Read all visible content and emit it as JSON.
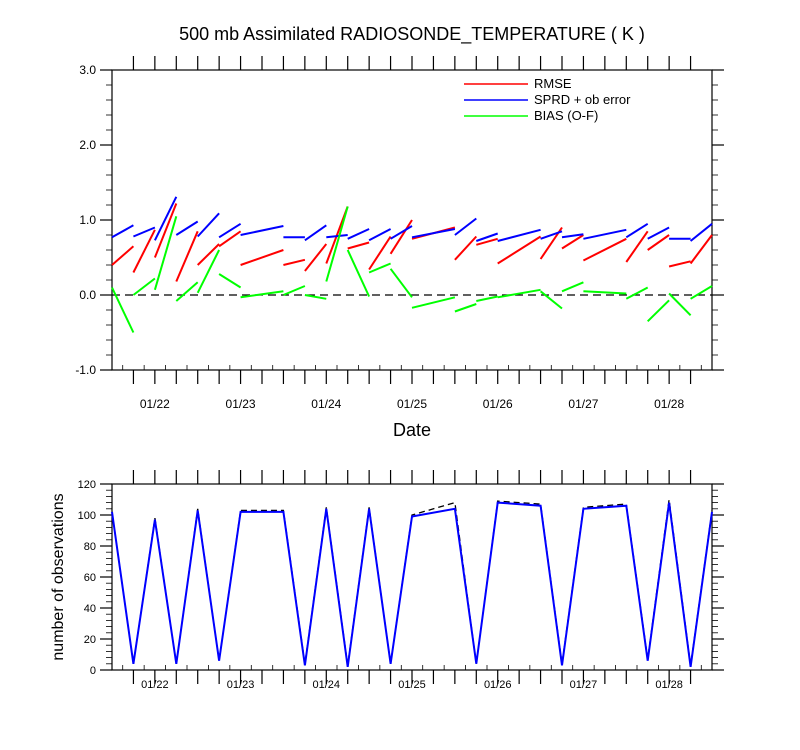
{
  "chart_data": [
    {
      "type": "line",
      "title": "500 mb Assimilated RADIOSONDE_TEMPERATURE ( K )",
      "xlabel": "Date",
      "ylabel": "",
      "ylim": [
        -1.0,
        3.0
      ],
      "yticks": [
        "-1.0",
        "0.0",
        "1.0",
        "2.0",
        "3.0"
      ],
      "ytick_values": [
        -1,
        0,
        1,
        2,
        3
      ],
      "xlim": [
        0,
        28
      ],
      "xticks": [
        {
          "x": 2,
          "label": "01/22"
        },
        {
          "x": 6,
          "label": "01/23"
        },
        {
          "x": 10,
          "label": "01/24"
        },
        {
          "x": 14,
          "label": "01/25"
        },
        {
          "x": 18,
          "label": "01/26"
        },
        {
          "x": 22,
          "label": "01/27"
        },
        {
          "x": 26,
          "label": "01/28"
        }
      ],
      "reference_line": 0,
      "legend": [
        "RMSE",
        "SPRD + ob error",
        "BIAS (O-F)"
      ],
      "series": [
        {
          "name": "RMSE",
          "color": "#ff0000",
          "segments": [
            [
              [
                0,
                0.4
              ],
              [
                1,
                0.65
              ]
            ],
            [
              [
                1,
                0.3
              ],
              [
                2,
                0.87
              ]
            ],
            [
              [
                2,
                0.5
              ],
              [
                3,
                1.22
              ]
            ],
            [
              [
                3,
                0.18
              ],
              [
                4,
                0.85
              ]
            ],
            [
              [
                4,
                0.4
              ],
              [
                5,
                0.68
              ]
            ],
            [
              [
                5,
                0.65
              ],
              [
                6,
                0.85
              ]
            ],
            [
              [
                6,
                0.4
              ],
              [
                8,
                0.6
              ]
            ],
            [
              [
                8,
                0.4
              ],
              [
                9,
                0.47
              ]
            ],
            [
              [
                9,
                0.32
              ],
              [
                10,
                0.68
              ]
            ],
            [
              [
                10,
                0.42
              ],
              [
                11,
                1.18
              ]
            ],
            [
              [
                11,
                0.62
              ],
              [
                12,
                0.7
              ]
            ],
            [
              [
                12,
                0.34
              ],
              [
                13,
                0.78
              ]
            ],
            [
              [
                13,
                0.55
              ],
              [
                14,
                1.0
              ]
            ],
            [
              [
                14,
                0.75
              ],
              [
                16,
                0.9
              ]
            ],
            [
              [
                16,
                0.47
              ],
              [
                17,
                0.78
              ]
            ],
            [
              [
                17,
                0.67
              ],
              [
                18,
                0.75
              ]
            ],
            [
              [
                18,
                0.42
              ],
              [
                20,
                0.78
              ]
            ],
            [
              [
                20,
                0.48
              ],
              [
                21,
                0.9
              ]
            ],
            [
              [
                21,
                0.62
              ],
              [
                22,
                0.8
              ]
            ],
            [
              [
                22,
                0.46
              ],
              [
                24,
                0.75
              ]
            ],
            [
              [
                24,
                0.44
              ],
              [
                25,
                0.85
              ]
            ],
            [
              [
                25,
                0.6
              ],
              [
                26,
                0.8
              ]
            ],
            [
              [
                26,
                0.38
              ],
              [
                27,
                0.45
              ]
            ],
            [
              [
                27,
                0.42
              ],
              [
                28,
                0.8
              ]
            ]
          ]
        },
        {
          "name": "SPRD + ob error",
          "color": "#0000ff",
          "segments": [
            [
              [
                0,
                0.77
              ],
              [
                1,
                0.93
              ]
            ],
            [
              [
                1,
                0.78
              ],
              [
                2,
                0.9
              ]
            ],
            [
              [
                2,
                0.73
              ],
              [
                3,
                1.31
              ]
            ],
            [
              [
                3,
                0.8
              ],
              [
                4,
                0.98
              ]
            ],
            [
              [
                4,
                0.78
              ],
              [
                5,
                1.09
              ]
            ],
            [
              [
                5,
                0.77
              ],
              [
                6,
                0.95
              ]
            ],
            [
              [
                6,
                0.8
              ],
              [
                8,
                0.92
              ]
            ],
            [
              [
                8,
                0.77
              ],
              [
                9,
                0.77
              ]
            ],
            [
              [
                9,
                0.73
              ],
              [
                10,
                0.93
              ]
            ],
            [
              [
                10,
                0.77
              ],
              [
                11,
                0.8
              ]
            ],
            [
              [
                11,
                0.75
              ],
              [
                12,
                0.88
              ]
            ],
            [
              [
                12,
                0.73
              ],
              [
                13,
                0.88
              ]
            ],
            [
              [
                13,
                0.75
              ],
              [
                14,
                0.92
              ]
            ],
            [
              [
                14,
                0.77
              ],
              [
                16,
                0.88
              ]
            ],
            [
              [
                16,
                0.8
              ],
              [
                17,
                1.02
              ]
            ],
            [
              [
                17,
                0.72
              ],
              [
                18,
                0.82
              ]
            ],
            [
              [
                18,
                0.72
              ],
              [
                20,
                0.87
              ]
            ],
            [
              [
                20,
                0.75
              ],
              [
                21,
                0.85
              ]
            ],
            [
              [
                21,
                0.77
              ],
              [
                22,
                0.81
              ]
            ],
            [
              [
                22,
                0.75
              ],
              [
                24,
                0.87
              ]
            ],
            [
              [
                24,
                0.77
              ],
              [
                25,
                0.95
              ]
            ],
            [
              [
                25,
                0.75
              ],
              [
                26,
                0.9
              ]
            ],
            [
              [
                26,
                0.75
              ],
              [
                27,
                0.75
              ]
            ],
            [
              [
                27,
                0.72
              ],
              [
                28,
                0.95
              ]
            ]
          ]
        },
        {
          "name": "BIAS (O-F)",
          "color": "#00ff00",
          "segments": [
            [
              [
                0,
                0.1
              ],
              [
                1,
                -0.5
              ]
            ],
            [
              [
                1,
                0.0
              ],
              [
                2,
                0.22
              ]
            ],
            [
              [
                2,
                0.07
              ],
              [
                3,
                1.05
              ]
            ],
            [
              [
                3,
                -0.08
              ],
              [
                4,
                0.17
              ]
            ],
            [
              [
                4,
                0.03
              ],
              [
                5,
                0.6
              ]
            ],
            [
              [
                5,
                0.28
              ],
              [
                6,
                0.1
              ]
            ],
            [
              [
                6,
                -0.03
              ],
              [
                8,
                0.05
              ]
            ],
            [
              [
                8,
                0.0
              ],
              [
                9,
                0.12
              ]
            ],
            [
              [
                9,
                0.0
              ],
              [
                10,
                -0.05
              ]
            ],
            [
              [
                10,
                0.18
              ],
              [
                11,
                1.18
              ]
            ],
            [
              [
                11,
                0.6
              ],
              [
                12,
                -0.02
              ]
            ],
            [
              [
                12,
                0.3
              ],
              [
                13,
                0.42
              ]
            ],
            [
              [
                13,
                0.35
              ],
              [
                14,
                -0.03
              ]
            ],
            [
              [
                14,
                -0.17
              ],
              [
                16,
                -0.03
              ]
            ],
            [
              [
                16,
                -0.22
              ],
              [
                17,
                -0.12
              ]
            ],
            [
              [
                17,
                -0.08
              ],
              [
                18,
                -0.02
              ]
            ],
            [
              [
                18,
                -0.03
              ],
              [
                20,
                0.07
              ]
            ],
            [
              [
                20,
                0.05
              ],
              [
                21,
                -0.18
              ]
            ],
            [
              [
                21,
                0.05
              ],
              [
                22,
                0.17
              ]
            ],
            [
              [
                22,
                0.05
              ],
              [
                24,
                0.02
              ]
            ],
            [
              [
                24,
                -0.05
              ],
              [
                25,
                0.1
              ]
            ],
            [
              [
                25,
                -0.35
              ],
              [
                26,
                -0.07
              ]
            ],
            [
              [
                26,
                0.02
              ],
              [
                27,
                -0.27
              ]
            ],
            [
              [
                27,
                -0.05
              ],
              [
                28,
                0.12
              ]
            ]
          ]
        }
      ]
    },
    {
      "type": "line",
      "title": "",
      "xlabel": "",
      "ylabel": "number of observations",
      "ylim": [
        0,
        120
      ],
      "yticks": [
        "0",
        "20",
        "40",
        "60",
        "80",
        "100",
        "120"
      ],
      "ytick_values": [
        0,
        20,
        40,
        60,
        80,
        100,
        120
      ],
      "xlim": [
        0,
        28
      ],
      "xticks": [
        {
          "x": 2,
          "label": "01/22"
        },
        {
          "x": 6,
          "label": "01/23"
        },
        {
          "x": 10,
          "label": "01/24"
        },
        {
          "x": 14,
          "label": "01/25"
        },
        {
          "x": 18,
          "label": "01/26"
        },
        {
          "x": 22,
          "label": "01/27"
        },
        {
          "x": 26,
          "label": "01/28"
        }
      ],
      "series": [
        {
          "name": "observations (black dashed)",
          "color": "#000000",
          "dashed": true,
          "points": [
            [
              0,
              102
            ],
            [
              1,
              4
            ],
            [
              2,
              98
            ],
            [
              3,
              4
            ],
            [
              4,
              104
            ],
            [
              5,
              6
            ],
            [
              6,
              103
            ],
            [
              8,
              103
            ],
            [
              9,
              4
            ],
            [
              10,
              105
            ],
            [
              11,
              3
            ],
            [
              12,
              105
            ],
            [
              13,
              4
            ],
            [
              14,
              100
            ],
            [
              16,
              108
            ],
            [
              17,
              4
            ],
            [
              18,
              109
            ],
            [
              20,
              107
            ],
            [
              21,
              4
            ],
            [
              22,
              105
            ],
            [
              24,
              107
            ],
            [
              25,
              7
            ],
            [
              26,
              110
            ],
            [
              27,
              3
            ],
            [
              28,
              103
            ]
          ]
        },
        {
          "name": "observations (blue)",
          "color": "#0000ff",
          "dashed": false,
          "points": [
            [
              0,
              102
            ],
            [
              1,
              4
            ],
            [
              2,
              97
            ],
            [
              3,
              4
            ],
            [
              4,
              103
            ],
            [
              5,
              6
            ],
            [
              6,
              102
            ],
            [
              8,
              102
            ],
            [
              9,
              3
            ],
            [
              10,
              104
            ],
            [
              11,
              2
            ],
            [
              12,
              104
            ],
            [
              13,
              4
            ],
            [
              14,
              99
            ],
            [
              16,
              104
            ],
            [
              17,
              4
            ],
            [
              18,
              108
            ],
            [
              20,
              106
            ],
            [
              21,
              3
            ],
            [
              22,
              104
            ],
            [
              24,
              106
            ],
            [
              25,
              6
            ],
            [
              26,
              108
            ],
            [
              27,
              2
            ],
            [
              28,
              102
            ]
          ]
        }
      ]
    }
  ]
}
